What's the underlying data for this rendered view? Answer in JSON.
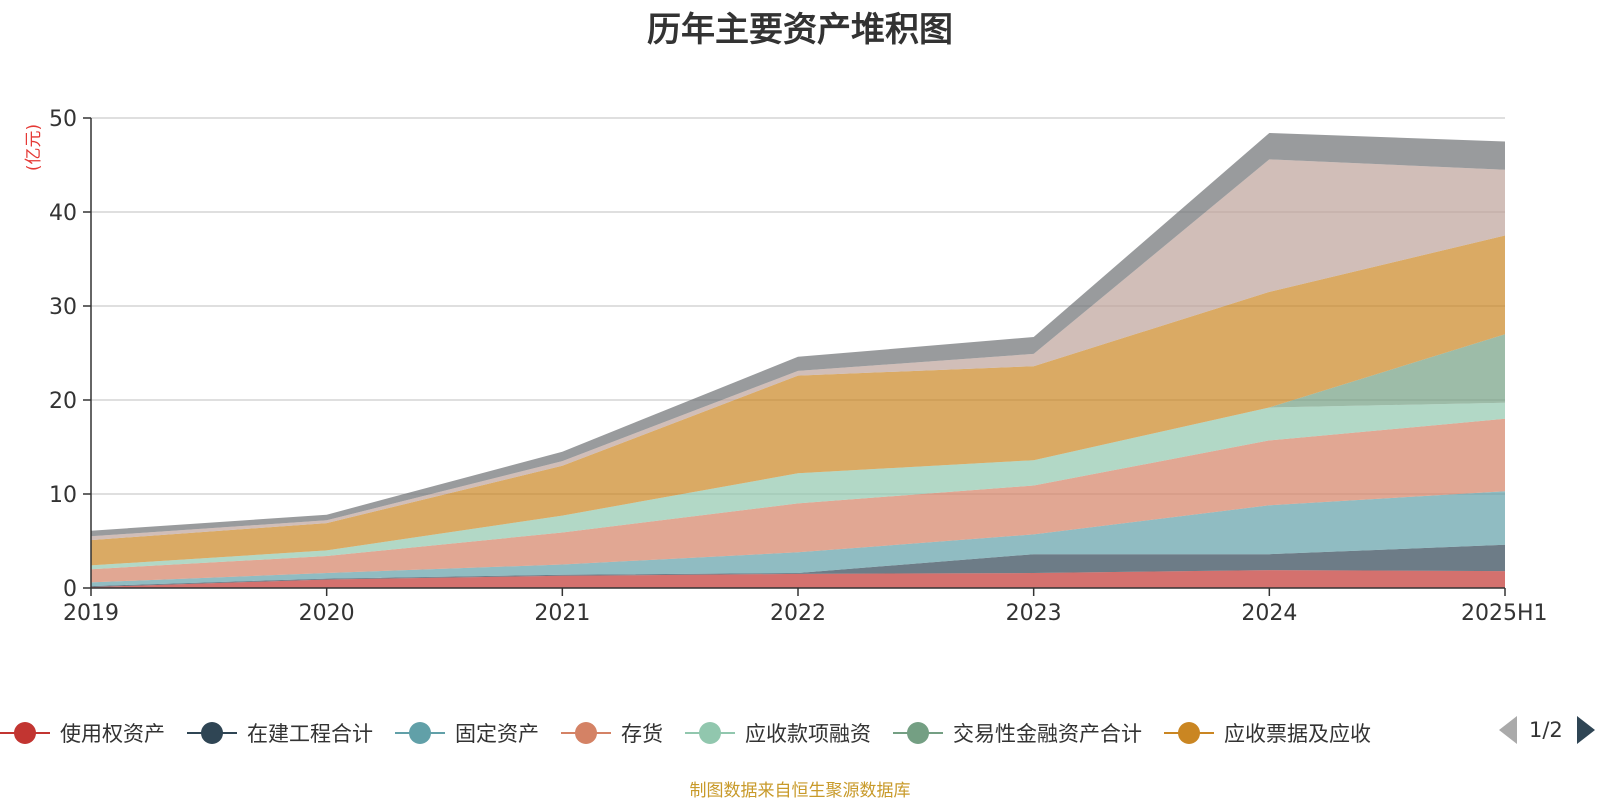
{
  "title": "历年主要资产堆积图",
  "unit_label": "(亿元)",
  "source_note": "制图数据来自恒生聚源数据库",
  "pager": {
    "text": "1/2"
  },
  "legend": [
    {
      "label": "使用权资产",
      "color": "#c23531"
    },
    {
      "label": "在建工程合计",
      "color": "#2f4554"
    },
    {
      "label": "固定资产",
      "color": "#61a0a8"
    },
    {
      "label": "存货",
      "color": "#d48265"
    },
    {
      "label": "应收款项融资",
      "color": "#91c7ae"
    },
    {
      "label": "交易性金融资产合计",
      "color": "#749f83"
    },
    {
      "label": "应收票据及应收",
      "color": "#ca8622"
    }
  ],
  "chart_data": {
    "type": "area",
    "stacked": true,
    "title": "历年主要资产堆积图",
    "ylabel": "(亿元)",
    "ylim": [
      0,
      50
    ],
    "yticks": [
      0,
      10,
      20,
      30,
      40,
      50
    ],
    "grid": true,
    "legend_position": "bottom",
    "x": [
      "2019",
      "2020",
      "2021",
      "2022",
      "2023",
      "2024",
      "2025H1"
    ],
    "series": [
      {
        "name": "使用权资产",
        "color": "#c23531",
        "values": [
          0.1,
          0.9,
          1.3,
          1.5,
          1.6,
          1.9,
          1.8
        ]
      },
      {
        "name": "在建工程合计",
        "color": "#2f4554",
        "values": [
          0.1,
          0.1,
          0.1,
          0.1,
          2.0,
          1.7,
          2.8
        ]
      },
      {
        "name": "固定资产",
        "color": "#61a0a8",
        "values": [
          0.4,
          0.6,
          1.1,
          2.2,
          2.1,
          5.2,
          5.7
        ]
      },
      {
        "name": "存货",
        "color": "#d48265",
        "values": [
          1.4,
          1.8,
          3.4,
          5.2,
          5.2,
          6.9,
          7.7
        ]
      },
      {
        "name": "应收款项融资",
        "color": "#91c7ae",
        "values": [
          0.4,
          0.6,
          1.8,
          3.2,
          2.7,
          3.5,
          1.7
        ]
      },
      {
        "name": "交易性金融资产合计",
        "color": "#749f83",
        "values": [
          0,
          0,
          0,
          0,
          0,
          0,
          7.3
        ]
      },
      {
        "name": "应收票据及应收",
        "color": "#ca8622",
        "values": [
          2.7,
          2.9,
          5.3,
          10.4,
          10.0,
          12.3,
          10.5
        ]
      },
      {
        "color": "#bda29a",
        "values": [
          0.4,
          0.3,
          0.5,
          0.5,
          1.3,
          14.1,
          7.0
        ]
      },
      {
        "color": "#6e7074",
        "values": [
          0.6,
          0.6,
          1.0,
          1.5,
          1.8,
          2.8,
          3.0
        ]
      }
    ]
  }
}
